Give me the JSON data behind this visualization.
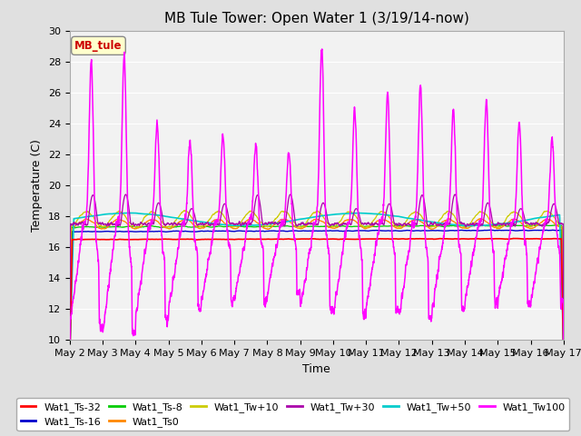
{
  "title": "MB Tule Tower: Open Water 1 (3/19/14-now)",
  "ylabel": "Temperature (C)",
  "xlabel": "Time",
  "ylim": [
    10,
    30
  ],
  "yticks": [
    10,
    12,
    14,
    16,
    18,
    20,
    22,
    24,
    26,
    28,
    30
  ],
  "xtick_labels": [
    "May 2",
    "May 3",
    "May 4",
    "May 5",
    "May 6",
    "May 7",
    "May 8",
    "May 9",
    "May 10",
    "May 11",
    "May 12",
    "May 13",
    "May 14",
    "May 15",
    "May 16",
    "May 17"
  ],
  "legend_label_box": "MB_tule",
  "colors": {
    "Wat1_Ts-32": "#ff0000",
    "Wat1_Ts-16": "#0000cc",
    "Wat1_Ts-8": "#00cc00",
    "Wat1_Ts0": "#ff8800",
    "Wat1_Tw+10": "#cccc00",
    "Wat1_Tw+30": "#aa00aa",
    "Wat1_Tw+50": "#00cccc",
    "Wat1_Tw100": "#ff00ff"
  },
  "background_color": "#e0e0e0",
  "plot_bg_color": "#f2f2f2",
  "grid_color": "#ffffff",
  "title_fontsize": 11,
  "tick_fontsize": 8,
  "label_fontsize": 9,
  "legend_fontsize": 8
}
